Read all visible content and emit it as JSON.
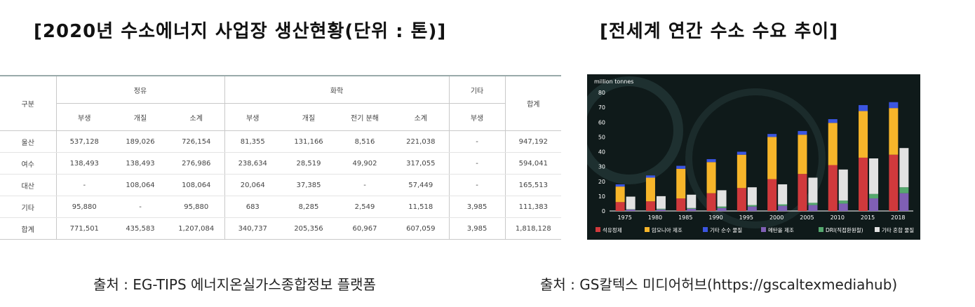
{
  "left_title": "[2020년 수소에너지 사업장 생산현황(단위 : 톤)]",
  "right_title": "[전세계 연간 수소 수요 추이]",
  "left_source": "출처 : EG-TIPS 에너지온실가스종합정보 플랫폼",
  "right_source": "출처 : GS칼텍스 미디어허브(https://gscaltexmediahub)",
  "table": {
    "region_header": "구분",
    "groups": [
      "정유",
      "화학",
      "기타"
    ],
    "total_header": "합계",
    "subheaders": [
      "부생",
      "개질",
      "소계",
      "부생",
      "개질",
      "전기 분해",
      "소계",
      "부생"
    ],
    "rows": [
      [
        "울산",
        "537,128",
        "189,026",
        "726,154",
        "81,355",
        "131,166",
        "8,516",
        "221,038",
        "-",
        "947,192"
      ],
      [
        "여수",
        "138,493",
        "138,493",
        "276,986",
        "238,634",
        "28,519",
        "49,902",
        "317,055",
        "-",
        "594,041"
      ],
      [
        "대산",
        "-",
        "108,064",
        "108,064",
        "20,064",
        "37,385",
        "-",
        "57,449",
        "-",
        "165,513"
      ],
      [
        "기타",
        "95,880",
        "-",
        "95,880",
        "683",
        "8,285",
        "2,549",
        "11,518",
        "3,985",
        "111,383"
      ],
      [
        "합계",
        "771,501",
        "435,583",
        "1,207,084",
        "340,737",
        "205,356",
        "60,967",
        "607,059",
        "3,985",
        "1,818,128"
      ]
    ]
  },
  "chart_data": {
    "type": "bar",
    "stacked": true,
    "ylabel": "million tonnes",
    "ylim": [
      0,
      80
    ],
    "yticks": [
      0,
      10,
      20,
      30,
      40,
      50,
      60,
      70,
      80
    ],
    "categories": [
      "1975",
      "1980",
      "1985",
      "1990",
      "1995",
      "2000",
      "2005",
      "2010",
      "2015",
      "2018"
    ],
    "group_a_series": [
      {
        "name": "석유정제",
        "color": "#d0393c",
        "values": [
          6,
          6.5,
          8.5,
          12,
          15.5,
          21.5,
          25,
          31,
          36,
          38
        ]
      },
      {
        "name": "암모니아 제조",
        "color": "#f7b52a",
        "values": [
          10.5,
          16,
          20,
          21,
          22.5,
          28.5,
          26.5,
          28.5,
          31.5,
          31.5
        ]
      },
      {
        "name": "기타 순수 물질",
        "color": "#3b55e0",
        "values": [
          1.5,
          1.5,
          2,
          2,
          2,
          2,
          2.5,
          2.5,
          4,
          4
        ]
      }
    ],
    "group_b_series": [
      {
        "name": "메탄올 제조",
        "color": "#7f5fb5",
        "values": [
          1,
          1,
          1.5,
          2,
          3,
          3.5,
          4,
          5,
          8.5,
          12
        ]
      },
      {
        "name": "DRI(직접환원철)",
        "color": "#55a86e",
        "values": [
          0.2,
          0.5,
          0.5,
          1,
          1,
          1,
          1.5,
          2,
          3,
          4
        ]
      },
      {
        "name": "기타 혼합 물질",
        "color": "#e2e2e2",
        "values": [
          8.5,
          8.5,
          9,
          11,
          12,
          13.5,
          17,
          21,
          24,
          26.5
        ]
      }
    ],
    "legend_placement": "bottom",
    "grid": false
  }
}
